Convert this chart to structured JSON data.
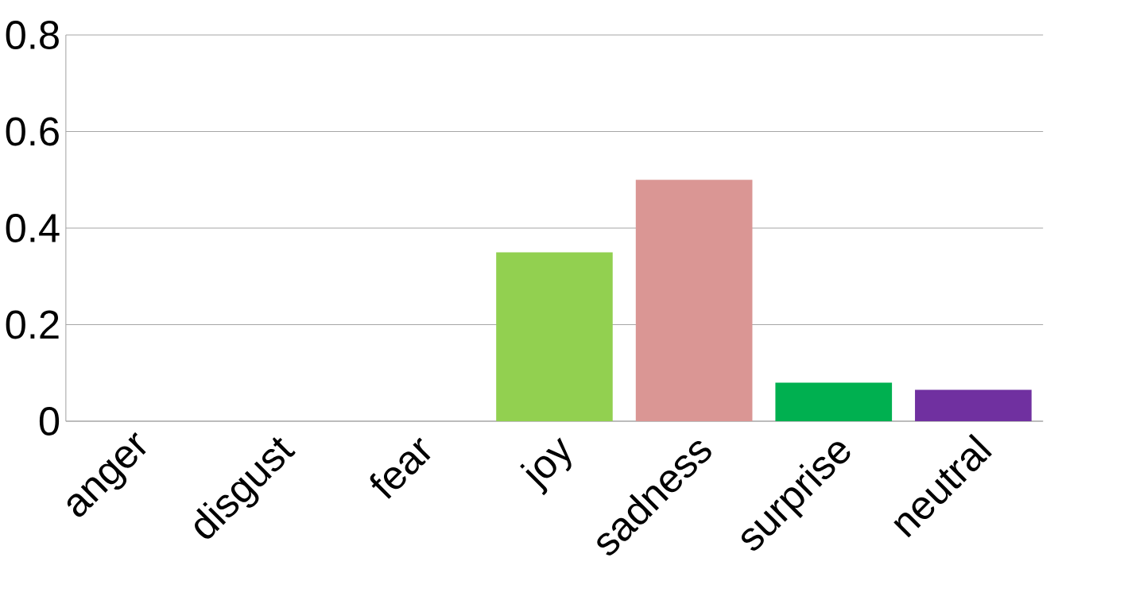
{
  "chart_data": {
    "type": "bar",
    "categories": [
      "anger",
      "disgust",
      "fear",
      "joy",
      "sadness",
      "surprise",
      "neutral"
    ],
    "values": [
      0,
      0,
      0,
      0.35,
      0.5,
      0.08,
      0.065
    ],
    "colors": [
      "#c0504d",
      "#f79646",
      "#4f81bd",
      "#92d050",
      "#da9694",
      "#00b050",
      "#7030a0"
    ],
    "ylim": [
      0,
      0.8
    ],
    "yticks": [
      0,
      0.2,
      0.4,
      0.6,
      0.8
    ],
    "grid": "y"
  }
}
